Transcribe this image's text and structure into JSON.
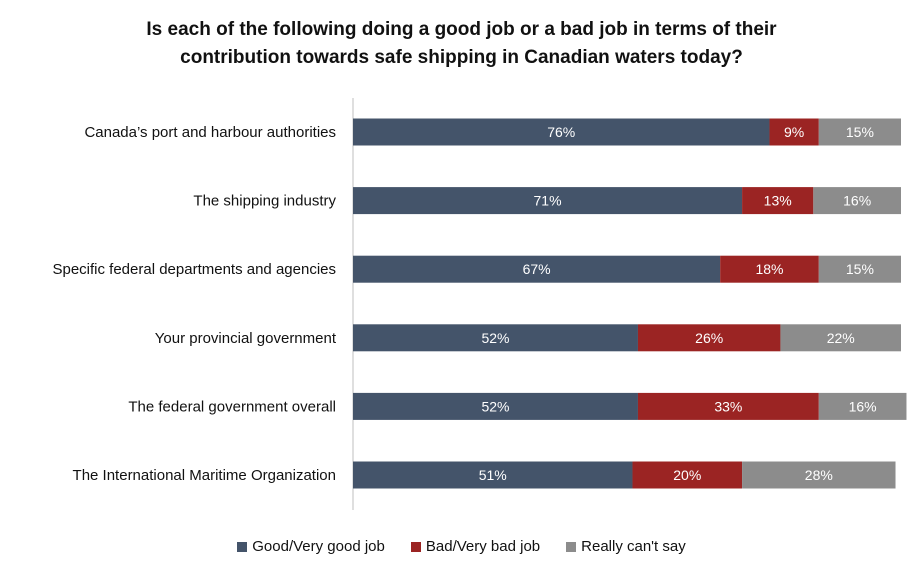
{
  "chart_data": {
    "type": "bar",
    "orientation": "horizontal",
    "stacked": true,
    "title": "Is each of the following doing a good job or a bad job in terms of their\ncontribution towards safe shipping in Canadian waters today?",
    "categories": [
      "Canada’s port and harbour authorities",
      "The shipping industry",
      "Specific federal departments and agencies",
      "Your provincial government",
      "The federal government overall",
      "The International Maritime Organization"
    ],
    "series": [
      {
        "name": "Good/Very good job",
        "color": "#44546A",
        "values": [
          76,
          71,
          67,
          52,
          52,
          51
        ],
        "labels": [
          "76%",
          "71%",
          "67%",
          "52%",
          "52%",
          "51%"
        ]
      },
      {
        "name": "Bad/Very bad job",
        "color": "#9B2423",
        "values": [
          9,
          13,
          18,
          26,
          33,
          20
        ],
        "labels": [
          "9%",
          "13%",
          "18%",
          "26%",
          "33%",
          "20%"
        ]
      },
      {
        "name": "Really can't say",
        "color": "#8C8C8C",
        "values": [
          15,
          16,
          15,
          22,
          16,
          28
        ],
        "labels": [
          "15%",
          "16%",
          "15%",
          "22%",
          "16%",
          "28%"
        ]
      }
    ],
    "xlim": [
      0,
      100
    ],
    "grid": false,
    "legend_position": "bottom"
  }
}
